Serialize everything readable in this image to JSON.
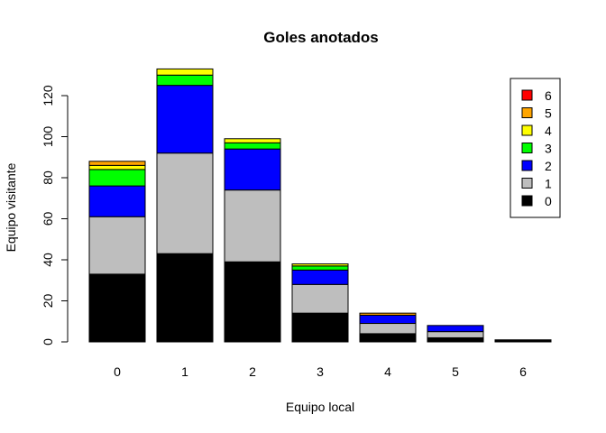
{
  "chart_data": {
    "type": "bar",
    "stacked": true,
    "title": "Goles anotados",
    "xlabel": "Equipo local",
    "ylabel": "Equipo visitante",
    "categories": [
      "0",
      "1",
      "2",
      "3",
      "4",
      "5",
      "6"
    ],
    "ylim": [
      0,
      130
    ],
    "yticks": [
      0,
      20,
      40,
      60,
      80,
      100,
      120
    ],
    "legend_position": "top-right",
    "series": [
      {
        "name": "0",
        "color": "#000000",
        "values": [
          33,
          43,
          39,
          14,
          4,
          2,
          1
        ]
      },
      {
        "name": "1",
        "color": "#BEBEBE",
        "values": [
          28,
          49,
          35,
          14,
          5,
          3,
          0
        ]
      },
      {
        "name": "2",
        "color": "#0000FF",
        "values": [
          15,
          33,
          20,
          7,
          4,
          3,
          0
        ]
      },
      {
        "name": "3",
        "color": "#00FF00",
        "values": [
          8,
          5,
          3,
          2,
          0,
          0,
          0
        ]
      },
      {
        "name": "4",
        "color": "#FFFF00",
        "values": [
          2,
          3,
          2,
          1,
          0,
          0,
          0
        ]
      },
      {
        "name": "5",
        "color": "#FFA500",
        "values": [
          2,
          0,
          0,
          0,
          1,
          0,
          0
        ]
      },
      {
        "name": "6",
        "color": "#FF0000",
        "values": [
          0,
          0,
          0,
          0,
          0,
          0,
          0
        ]
      }
    ]
  }
}
